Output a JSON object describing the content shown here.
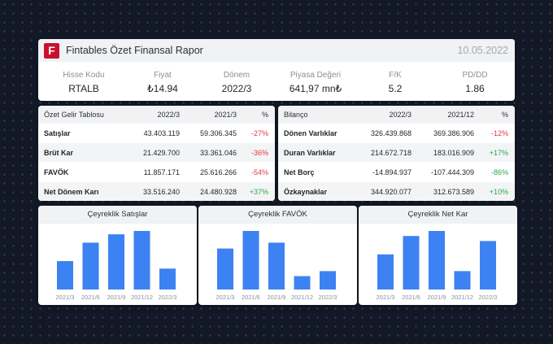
{
  "header": {
    "logo_letter": "F",
    "title": "Fintables Özet Finansal Rapor",
    "date": "10.05.2022",
    "metrics": [
      {
        "label": "Hisse Kodu",
        "value": "RTALB"
      },
      {
        "label": "Fiyat",
        "value": "₺14.94"
      },
      {
        "label": "Dönem",
        "value": "2022/3"
      },
      {
        "label": "Piyasa Değeri",
        "value": "641,97 mn₺"
      },
      {
        "label": "F/K",
        "value": "5.2"
      },
      {
        "label": "PD/DD",
        "value": "1.86"
      }
    ]
  },
  "income": {
    "title": "Özet Gelir Tablosu",
    "col1": "2022/3",
    "col2": "2021/3",
    "col3": "%",
    "rows": [
      {
        "name": "Satışlar",
        "v1": "43.403.119",
        "v2": "59.306.345",
        "pct": "-27%"
      },
      {
        "name": "Brüt Kar",
        "v1": "21.429.700",
        "v2": "33.361.046",
        "pct": "-36%"
      },
      {
        "name": "FAVÖK",
        "v1": "11.857.171",
        "v2": "25.616.266",
        "pct": "-54%"
      },
      {
        "name": "Net Dönem Karı",
        "v1": "33.516.240",
        "v2": "24.480.928",
        "pct": "+37%"
      }
    ]
  },
  "balance": {
    "title": "Bilanço",
    "col1": "2022/3",
    "col2": "2021/12",
    "col3": "%",
    "rows": [
      {
        "name": "Dönen Varlıklar",
        "v1": "326.439.868",
        "v2": "369.386.906",
        "pct": "-12%"
      },
      {
        "name": "Duran Varlıklar",
        "v1": "214.672.718",
        "v2": "183.016.909",
        "pct": "+17%"
      },
      {
        "name": "Net Borç",
        "v1": "-14.894.937",
        "v2": "-107.444.309",
        "pct": "-86%"
      },
      {
        "name": "Özkaynaklar",
        "v1": "344.920.077",
        "v2": "312.673.589",
        "pct": "+10%"
      }
    ]
  },
  "colors": {
    "bar": "#3d82f2",
    "negative": "#e5383b",
    "positive": "#2aa84a",
    "brand": "#c8102e"
  },
  "chart_data": [
    {
      "type": "bar",
      "title": "Çeyreklik Satışlar",
      "categories": [
        "2021/3",
        "2021/6",
        "2021/9",
        "2021/12",
        "2022/3"
      ],
      "values": [
        34,
        56,
        66,
        70,
        25
      ],
      "grid": false
    },
    {
      "type": "bar",
      "title": "Çeyreklik FAVÖK",
      "categories": [
        "2021/3",
        "2021/6",
        "2021/9",
        "2021/12",
        "2022/3"
      ],
      "values": [
        49,
        70,
        56,
        16,
        22
      ],
      "grid": false
    },
    {
      "type": "bar",
      "title": "Çeyreklik Net Kar",
      "categories": [
        "2021/3",
        "2021/6",
        "2021/9",
        "2021/12",
        "2022/3"
      ],
      "values": [
        42,
        64,
        70,
        22,
        58
      ],
      "grid": false
    }
  ]
}
